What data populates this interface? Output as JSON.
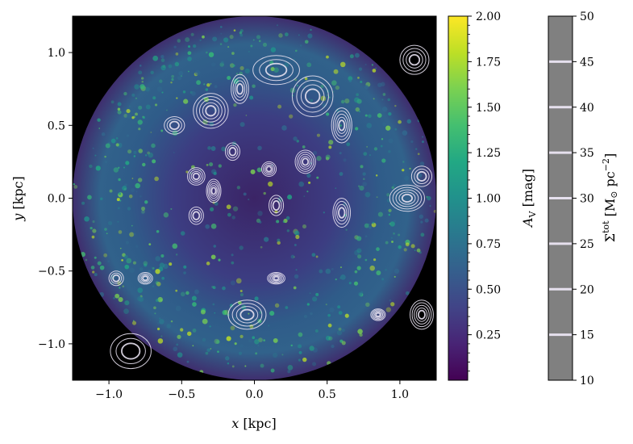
{
  "chart_data": {
    "type": "heatmap",
    "title": "",
    "xlabel": "x [kpc]",
    "ylabel": "y [kpc]",
    "xlim": [
      -1.25,
      1.25
    ],
    "ylim": [
      -1.25,
      1.25
    ],
    "x_ticks": [
      "−1.0",
      "−0.5",
      "0.0",
      "0.5",
      "1.0"
    ],
    "y_ticks": [
      "−1.0",
      "−0.5",
      "0.0",
      "0.5",
      "1.0"
    ],
    "x_tick_values": [
      -1.0,
      -0.5,
      0.0,
      0.5,
      1.0
    ],
    "y_tick_values": [
      -1.0,
      -0.5,
      0.0,
      0.5,
      1.0
    ],
    "disk_radius_kpc": 1.25,
    "background_outside_disk": "#000000",
    "colormap": "viridis",
    "colorbar_av": {
      "label": "A_V [mag]",
      "label_main": "A",
      "label_sub": "V",
      "label_unit": "[mag]",
      "range": [
        0.0,
        2.0
      ],
      "ticks": [
        2.0,
        1.75,
        1.5,
        1.25,
        1.0,
        0.75,
        0.5,
        0.25
      ],
      "tick_labels": [
        "2.00",
        "1.75",
        "1.50",
        "1.25",
        "1.00",
        "0.75",
        "0.50",
        "0.25"
      ]
    },
    "colorbar_sigma": {
      "label": "Σ^tot [M⊙ pc^−2]",
      "label_main": "Σ",
      "label_sup": "tot",
      "label_unit_a": "[M",
      "label_unit_sun": "⊙",
      "label_unit_b": " pc",
      "label_unit_sup": "−2",
      "label_unit_c": "]",
      "range": [
        10,
        50
      ],
      "ticks": [
        50,
        45,
        40,
        35,
        30,
        25,
        20,
        15,
        10
      ],
      "tick_labels": [
        "50",
        "45",
        "40",
        "35",
        "30",
        "25",
        "20",
        "15",
        "10"
      ],
      "contour_levels": [
        15,
        20,
        25,
        30,
        35,
        40,
        45
      ],
      "color": "#e6e0ee"
    },
    "contour_blobs": [
      {
        "x": 0.15,
        "y": 0.88,
        "rx": 0.16,
        "ry": 0.1
      },
      {
        "x": -0.1,
        "y": 0.75,
        "rx": 0.06,
        "ry": 0.1
      },
      {
        "x": -0.3,
        "y": 0.6,
        "rx": 0.12,
        "ry": 0.12
      },
      {
        "x": -0.55,
        "y": 0.5,
        "rx": 0.07,
        "ry": 0.06
      },
      {
        "x": 0.4,
        "y": 0.7,
        "rx": 0.14,
        "ry": 0.14
      },
      {
        "x": 0.6,
        "y": 0.5,
        "rx": 0.07,
        "ry": 0.12
      },
      {
        "x": -0.15,
        "y": 0.32,
        "rx": 0.05,
        "ry": 0.06
      },
      {
        "x": -0.4,
        "y": 0.15,
        "rx": 0.06,
        "ry": 0.06
      },
      {
        "x": -0.28,
        "y": 0.05,
        "rx": 0.05,
        "ry": 0.08
      },
      {
        "x": -0.4,
        "y": -0.12,
        "rx": 0.05,
        "ry": 0.06
      },
      {
        "x": 0.1,
        "y": 0.2,
        "rx": 0.05,
        "ry": 0.05
      },
      {
        "x": 0.35,
        "y": 0.25,
        "rx": 0.07,
        "ry": 0.08
      },
      {
        "x": 0.15,
        "y": -0.05,
        "rx": 0.05,
        "ry": 0.07
      },
      {
        "x": 0.6,
        "y": -0.1,
        "rx": 0.06,
        "ry": 0.1
      },
      {
        "x": 1.05,
        "y": 0.0,
        "rx": 0.12,
        "ry": 0.09
      },
      {
        "x": 1.15,
        "y": 0.15,
        "rx": 0.07,
        "ry": 0.07
      },
      {
        "x": -0.05,
        "y": -0.8,
        "rx": 0.13,
        "ry": 0.1
      },
      {
        "x": 0.15,
        "y": -0.55,
        "rx": 0.06,
        "ry": 0.04
      },
      {
        "x": -0.85,
        "y": -1.05,
        "rx": 0.14,
        "ry": 0.12
      },
      {
        "x": 1.1,
        "y": 0.95,
        "rx": 0.1,
        "ry": 0.1
      },
      {
        "x": 1.15,
        "y": -0.8,
        "rx": 0.08,
        "ry": 0.1
      },
      {
        "x": -0.95,
        "y": -0.55,
        "rx": 0.05,
        "ry": 0.05
      },
      {
        "x": -0.75,
        "y": -0.55,
        "rx": 0.05,
        "ry": 0.04
      },
      {
        "x": 0.85,
        "y": -0.8,
        "rx": 0.05,
        "ry": 0.04
      }
    ]
  }
}
